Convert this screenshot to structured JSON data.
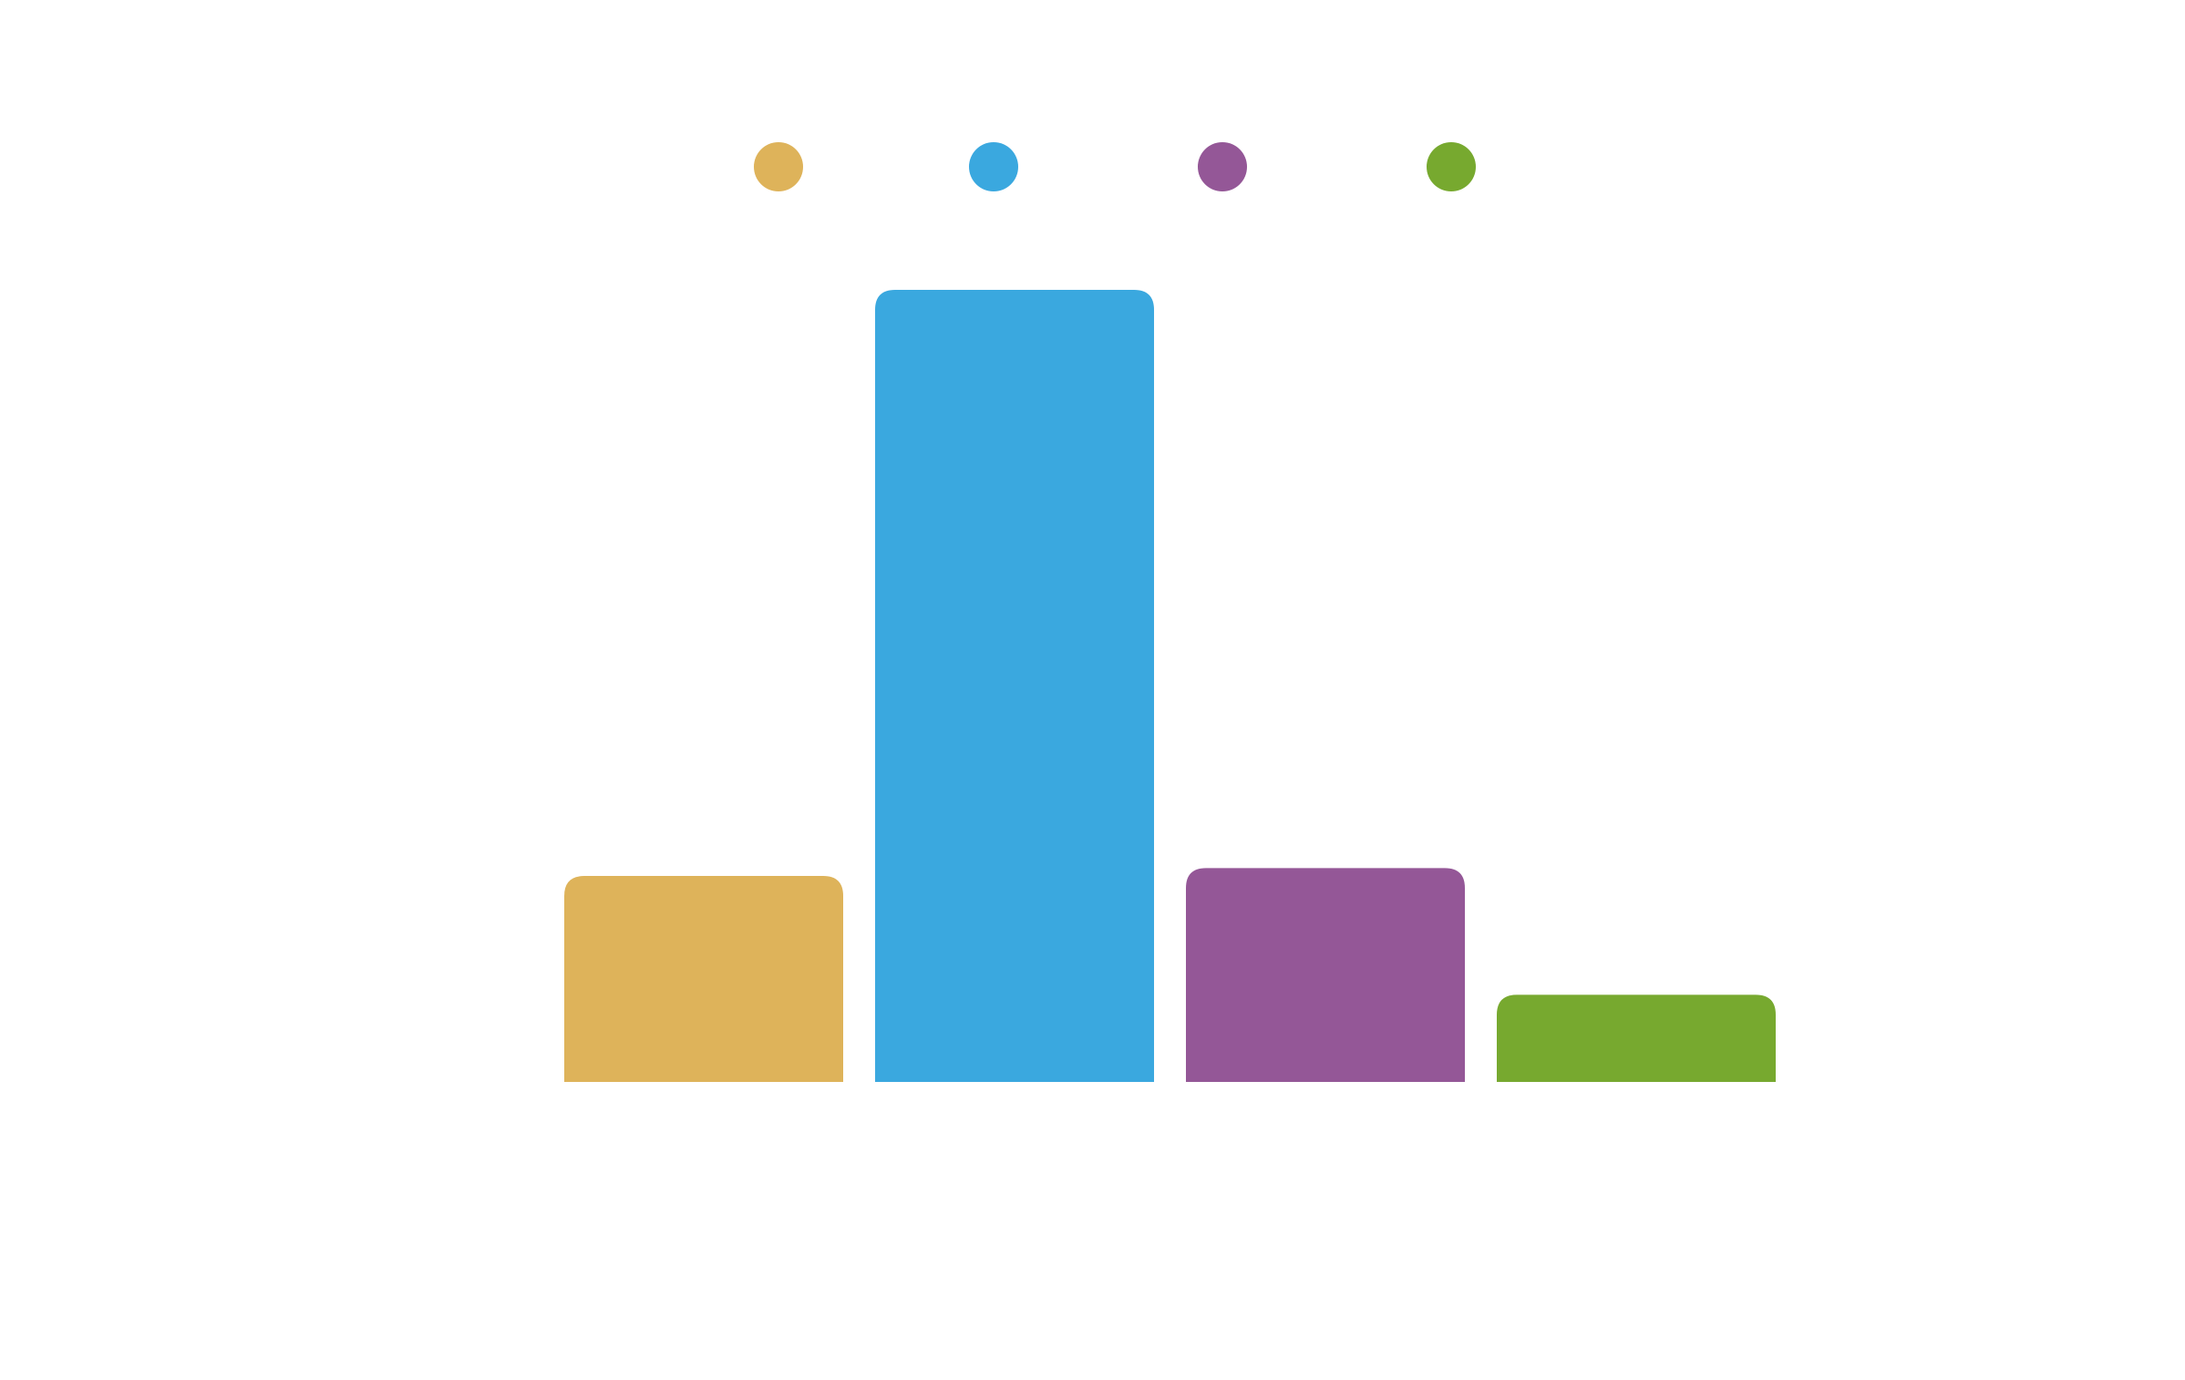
{
  "chart_data": {
    "type": "bar",
    "categories": [
      "",
      "",
      "",
      ""
    ],
    "values": [
      26,
      100,
      27,
      11
    ],
    "ylim": [
      0,
      100
    ],
    "grid": false,
    "legend": {
      "placement": "top-center",
      "entries": [
        "",
        "",
        "",
        ""
      ]
    },
    "colors": [
      "#DEB35A",
      "#3AA8DF",
      "#945797",
      "#77A92F"
    ],
    "title": "",
    "xlabel": "",
    "ylabel": ""
  }
}
